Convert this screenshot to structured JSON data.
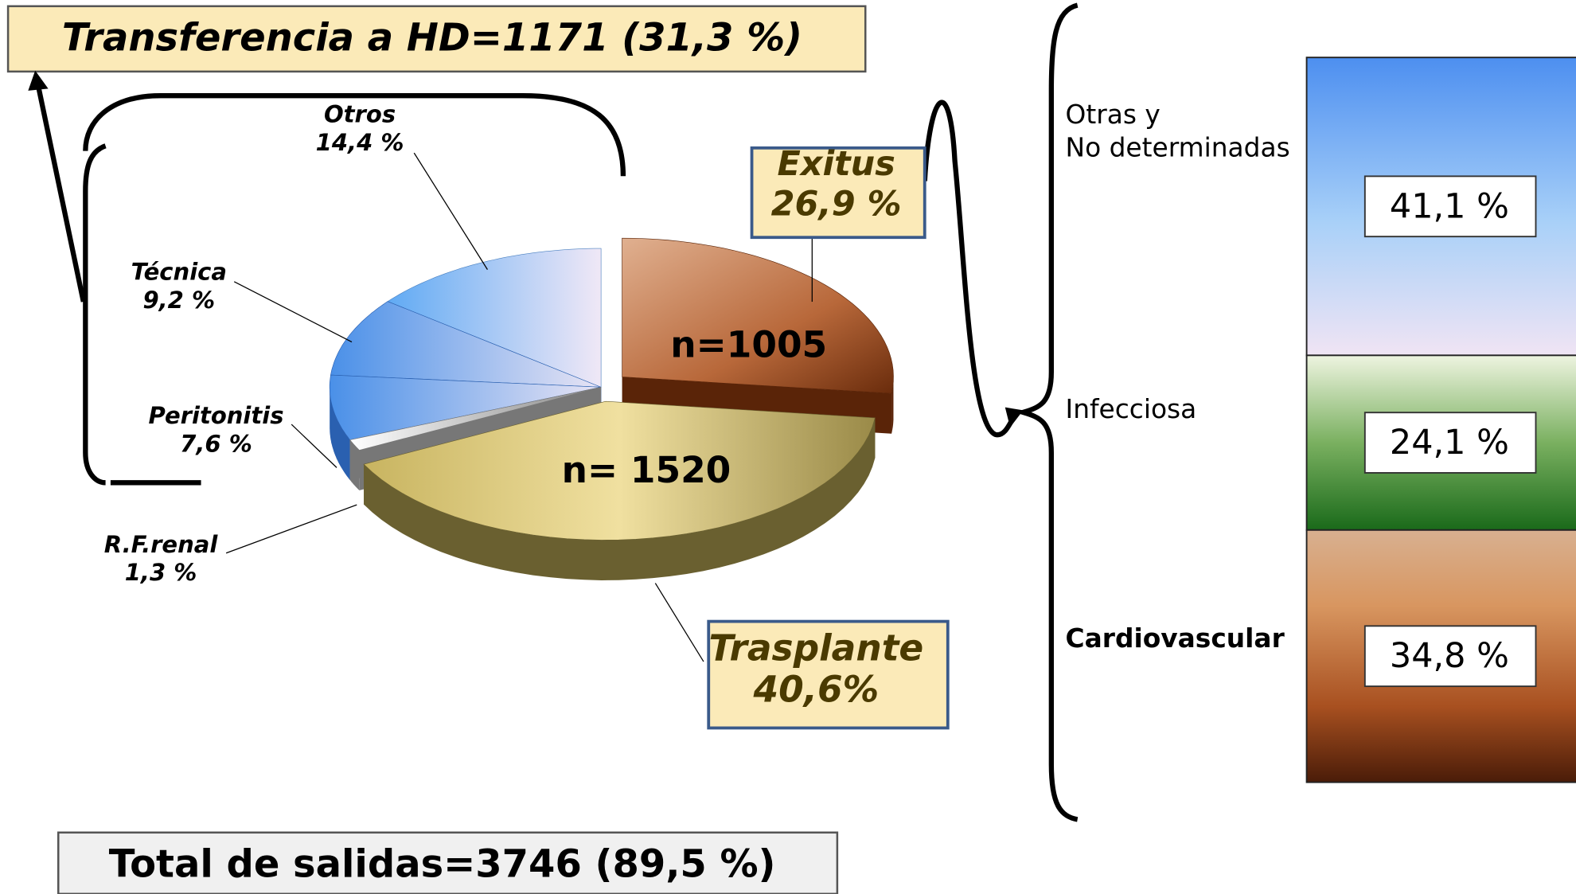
{
  "chart_data": [
    {
      "type": "pie",
      "title": "Transferencia a HD=1171 (31,3 %)",
      "subtitle": "Total de salidas=3746 (89,5 %)",
      "categories": [
        "Exitus",
        "Trasplante",
        "R.F.renal",
        "Peritonitis",
        "Técnica",
        "Otros"
      ],
      "values": [
        26.9,
        40.6,
        1.3,
        7.6,
        9.2,
        14.4
      ],
      "value_labels": [
        "26,9 %",
        "40,6%",
        "1,3 %",
        "7,6 %",
        "9,2 %",
        "14,4 %"
      ],
      "colors": [
        "#b8683a",
        "#d8c878",
        "#d8d8d8",
        "#5aa0f0",
        "#5aa0f0",
        "#8cc4f8"
      ],
      "annotations": [
        "n=1005",
        "n= 1520"
      ]
    },
    {
      "type": "stacked_bar",
      "categories": [
        "Otras y\nNo determinadas",
        "Infecciosa",
        "Cardiovascular"
      ],
      "values": [
        41.1,
        24.1,
        34.8
      ],
      "value_labels": [
        "41,1 %",
        "24,1 %",
        "34,8 %"
      ]
    }
  ]
}
